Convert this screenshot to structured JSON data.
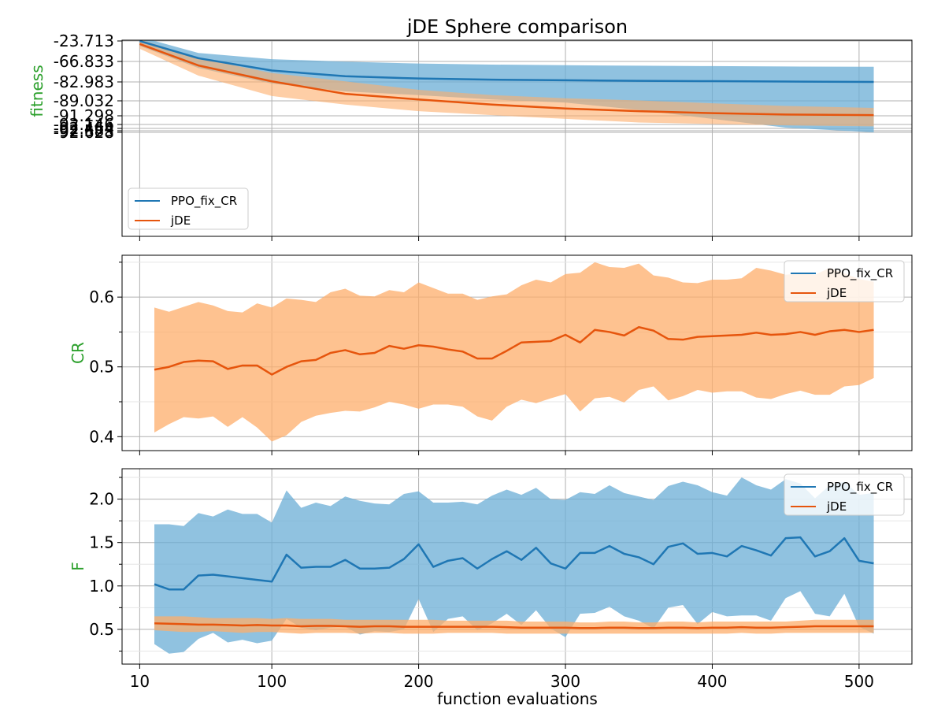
{
  "figure": {
    "title": "jDE Sphere comparison",
    "xlabel": "function evaluations"
  },
  "colors": {
    "ppo_line": "#1f77b4",
    "ppo_band": "#6baed6",
    "jde_line": "#e6550d",
    "jde_band": "#fdae6b",
    "label_green": "#2ca02c",
    "grid": "#b0b0b0"
  },
  "chart_data": [
    {
      "type": "line",
      "panel": "fitness",
      "ylabel": "fitness",
      "xlim": [
        10,
        510
      ],
      "x_ticks": [
        10,
        100,
        200,
        300,
        400,
        500
      ],
      "y_tick_labels": [
        "-23.713",
        "-66.833",
        "-82.983",
        "-89.032",
        "-91.298",
        "-92.146",
        "-92.464",
        "-92.583",
        "-92.628"
      ],
      "y_scale": "nonlinear (symlog-like)",
      "grid": true,
      "legend_position": "lower-left",
      "series": [
        {
          "name": "PPO_fix_CR",
          "x": [
            10,
            50,
            100,
            150,
            200,
            250,
            300,
            350,
            400,
            450,
            510
          ],
          "mean": [
            -23.7,
            -60.0,
            -74.0,
            -78.5,
            -80.3,
            -81.2,
            -81.7,
            -82.1,
            -82.4,
            -82.7,
            -82.983
          ],
          "lower": [
            -34.0,
            -72.0,
            -83.5,
            -86.0,
            -87.2,
            -88.6,
            -89.3,
            -90.4,
            -91.6,
            -92.4,
            -92.628
          ],
          "upper": [
            -15.0,
            -49.0,
            -62.0,
            -67.0,
            -68.5,
            -69.3,
            -69.8,
            -70.2,
            -70.5,
            -70.8,
            -71.0
          ]
        },
        {
          "name": "jDE",
          "x": [
            10,
            50,
            100,
            150,
            200,
            250,
            300,
            350,
            400,
            450,
            510
          ],
          "mean": [
            -30.0,
            -70.0,
            -82.5,
            -86.8,
            -88.6,
            -89.6,
            -90.2,
            -90.6,
            -90.9,
            -91.1,
            -91.2
          ],
          "lower": [
            -40.0,
            -78.0,
            -87.5,
            -89.6,
            -90.6,
            -91.2,
            -91.6,
            -91.95,
            -92.1,
            -92.22,
            -92.3
          ],
          "upper": [
            -20.0,
            -60.0,
            -76.0,
            -82.5,
            -85.5,
            -87.2,
            -88.2,
            -88.9,
            -89.4,
            -89.8,
            -90.1
          ]
        }
      ]
    },
    {
      "type": "line",
      "panel": "CR",
      "ylabel": "CR",
      "xlim": [
        10,
        510
      ],
      "ylim": [
        0.38,
        0.66
      ],
      "y_ticks": [
        0.4,
        0.5,
        0.6
      ],
      "y_tick_labels": [
        "0.4",
        "0.5",
        "0.6"
      ],
      "grid": true,
      "legend_position": "top-right",
      "series": [
        {
          "name": "PPO_fix_CR",
          "x": [],
          "mean": [],
          "lower": [],
          "upper": []
        },
        {
          "name": "jDE",
          "x": [
            20,
            30,
            40,
            50,
            60,
            70,
            80,
            90,
            100,
            110,
            120,
            130,
            140,
            150,
            160,
            170,
            180,
            190,
            200,
            210,
            220,
            230,
            240,
            250,
            260,
            270,
            280,
            290,
            300,
            310,
            320,
            330,
            340,
            350,
            360,
            370,
            380,
            390,
            400,
            410,
            420,
            430,
            440,
            450,
            460,
            470,
            480,
            490,
            500,
            510
          ],
          "mean": [
            0.496,
            0.5,
            0.507,
            0.509,
            0.508,
            0.497,
            0.502,
            0.502,
            0.489,
            0.5,
            0.508,
            0.51,
            0.52,
            0.524,
            0.518,
            0.52,
            0.53,
            0.526,
            0.531,
            0.529,
            0.525,
            0.522,
            0.512,
            0.512,
            0.523,
            0.535,
            0.536,
            0.537,
            0.546,
            0.535,
            0.553,
            0.55,
            0.545,
            0.557,
            0.552,
            0.54,
            0.539,
            0.543,
            0.544,
            0.545,
            0.546,
            0.549,
            0.546,
            0.547,
            0.55,
            0.546,
            0.551,
            0.553,
            0.55,
            0.553
          ],
          "lower": [
            0.406,
            0.418,
            0.428,
            0.426,
            0.429,
            0.414,
            0.428,
            0.413,
            0.393,
            0.402,
            0.421,
            0.43,
            0.434,
            0.437,
            0.436,
            0.442,
            0.45,
            0.446,
            0.44,
            0.446,
            0.446,
            0.443,
            0.429,
            0.423,
            0.443,
            0.453,
            0.448,
            0.455,
            0.461,
            0.436,
            0.455,
            0.457,
            0.449,
            0.467,
            0.472,
            0.452,
            0.458,
            0.467,
            0.463,
            0.465,
            0.465,
            0.456,
            0.454,
            0.461,
            0.466,
            0.46,
            0.46,
            0.472,
            0.474,
            0.484
          ],
          "upper": [
            0.585,
            0.579,
            0.586,
            0.593,
            0.588,
            0.58,
            0.578,
            0.591,
            0.585,
            0.598,
            0.596,
            0.593,
            0.607,
            0.612,
            0.602,
            0.601,
            0.61,
            0.607,
            0.621,
            0.613,
            0.605,
            0.605,
            0.596,
            0.601,
            0.604,
            0.617,
            0.625,
            0.621,
            0.633,
            0.635,
            0.65,
            0.643,
            0.642,
            0.648,
            0.631,
            0.628,
            0.621,
            0.62,
            0.625,
            0.625,
            0.627,
            0.642,
            0.638,
            0.632,
            0.634,
            0.632,
            0.642,
            0.634,
            0.626,
            0.622
          ]
        }
      ]
    },
    {
      "type": "line",
      "panel": "F",
      "ylabel": "F",
      "xlim": [
        10,
        510
      ],
      "ylim": [
        0.1,
        2.35
      ],
      "y_ticks": [
        0.5,
        1.0,
        1.5,
        2.0
      ],
      "y_tick_labels": [
        "0.5",
        "1.0",
        "1.5",
        "2.0"
      ],
      "grid": true,
      "legend_position": "top-right",
      "series": [
        {
          "name": "PPO_fix_CR",
          "x": [
            20,
            30,
            40,
            50,
            60,
            70,
            80,
            90,
            100,
            110,
            120,
            130,
            140,
            150,
            160,
            170,
            180,
            190,
            200,
            210,
            220,
            230,
            240,
            250,
            260,
            270,
            280,
            290,
            300,
            310,
            320,
            330,
            340,
            350,
            360,
            370,
            380,
            390,
            400,
            410,
            420,
            430,
            440,
            450,
            460,
            470,
            480,
            490,
            500,
            510
          ],
          "mean": [
            1.02,
            0.96,
            0.96,
            1.12,
            1.13,
            1.11,
            1.09,
            1.07,
            1.05,
            1.36,
            1.21,
            1.22,
            1.22,
            1.3,
            1.2,
            1.2,
            1.21,
            1.31,
            1.48,
            1.22,
            1.29,
            1.32,
            1.2,
            1.31,
            1.4,
            1.3,
            1.44,
            1.26,
            1.2,
            1.38,
            1.38,
            1.46,
            1.37,
            1.33,
            1.25,
            1.45,
            1.49,
            1.37,
            1.38,
            1.34,
            1.46,
            1.41,
            1.35,
            1.55,
            1.56,
            1.34,
            1.4,
            1.55,
            1.29,
            1.26
          ],
          "lower": [
            0.33,
            0.22,
            0.24,
            0.39,
            0.46,
            0.35,
            0.38,
            0.34,
            0.37,
            0.62,
            0.52,
            0.49,
            0.52,
            0.53,
            0.44,
            0.48,
            0.47,
            0.5,
            0.85,
            0.47,
            0.62,
            0.65,
            0.49,
            0.57,
            0.68,
            0.55,
            0.72,
            0.51,
            0.41,
            0.68,
            0.69,
            0.76,
            0.65,
            0.6,
            0.51,
            0.75,
            0.78,
            0.56,
            0.7,
            0.65,
            0.66,
            0.66,
            0.6,
            0.86,
            0.94,
            0.68,
            0.65,
            0.91,
            0.53,
            0.45
          ],
          "upper": [
            1.71,
            1.71,
            1.69,
            1.84,
            1.8,
            1.88,
            1.83,
            1.83,
            1.73,
            2.1,
            1.9,
            1.96,
            1.92,
            2.03,
            1.98,
            1.95,
            1.94,
            2.06,
            2.09,
            1.96,
            1.96,
            1.97,
            1.94,
            2.04,
            2.11,
            2.05,
            2.13,
            2.0,
            1.99,
            2.08,
            2.06,
            2.16,
            2.07,
            2.03,
            1.99,
            2.15,
            2.2,
            2.16,
            2.08,
            2.04,
            2.25,
            2.16,
            2.11,
            2.23,
            2.18,
            2.01,
            2.16,
            2.2,
            2.05,
            2.07
          ]
        },
        {
          "name": "jDE",
          "x": [
            20,
            30,
            40,
            50,
            60,
            70,
            80,
            90,
            100,
            110,
            120,
            130,
            140,
            150,
            160,
            170,
            180,
            190,
            200,
            210,
            220,
            230,
            240,
            250,
            260,
            270,
            280,
            290,
            300,
            310,
            320,
            330,
            340,
            350,
            360,
            370,
            380,
            390,
            400,
            410,
            420,
            430,
            440,
            450,
            460,
            470,
            480,
            490,
            500,
            510
          ],
          "mean": [
            0.57,
            0.565,
            0.56,
            0.555,
            0.555,
            0.55,
            0.545,
            0.55,
            0.545,
            0.545,
            0.535,
            0.54,
            0.54,
            0.535,
            0.53,
            0.535,
            0.535,
            0.53,
            0.53,
            0.53,
            0.53,
            0.53,
            0.53,
            0.53,
            0.525,
            0.52,
            0.52,
            0.52,
            0.52,
            0.515,
            0.515,
            0.52,
            0.52,
            0.515,
            0.515,
            0.52,
            0.52,
            0.515,
            0.52,
            0.52,
            0.525,
            0.52,
            0.52,
            0.525,
            0.53,
            0.535,
            0.535,
            0.535,
            0.535,
            0.535
          ],
          "lower": [
            0.49,
            0.48,
            0.47,
            0.47,
            0.48,
            0.47,
            0.46,
            0.47,
            0.47,
            0.46,
            0.45,
            0.46,
            0.46,
            0.46,
            0.45,
            0.46,
            0.46,
            0.45,
            0.45,
            0.45,
            0.46,
            0.46,
            0.46,
            0.46,
            0.45,
            0.45,
            0.45,
            0.45,
            0.45,
            0.45,
            0.45,
            0.45,
            0.45,
            0.45,
            0.45,
            0.45,
            0.45,
            0.45,
            0.45,
            0.45,
            0.46,
            0.45,
            0.45,
            0.46,
            0.46,
            0.46,
            0.46,
            0.46,
            0.46,
            0.46
          ],
          "upper": [
            0.65,
            0.65,
            0.65,
            0.64,
            0.63,
            0.63,
            0.63,
            0.63,
            0.62,
            0.63,
            0.62,
            0.62,
            0.62,
            0.61,
            0.61,
            0.61,
            0.61,
            0.61,
            0.61,
            0.61,
            0.6,
            0.6,
            0.6,
            0.6,
            0.6,
            0.59,
            0.59,
            0.59,
            0.59,
            0.58,
            0.58,
            0.59,
            0.59,
            0.58,
            0.58,
            0.59,
            0.59,
            0.58,
            0.59,
            0.59,
            0.59,
            0.59,
            0.59,
            0.59,
            0.6,
            0.61,
            0.61,
            0.61,
            0.61,
            0.61
          ]
        }
      ]
    }
  ]
}
